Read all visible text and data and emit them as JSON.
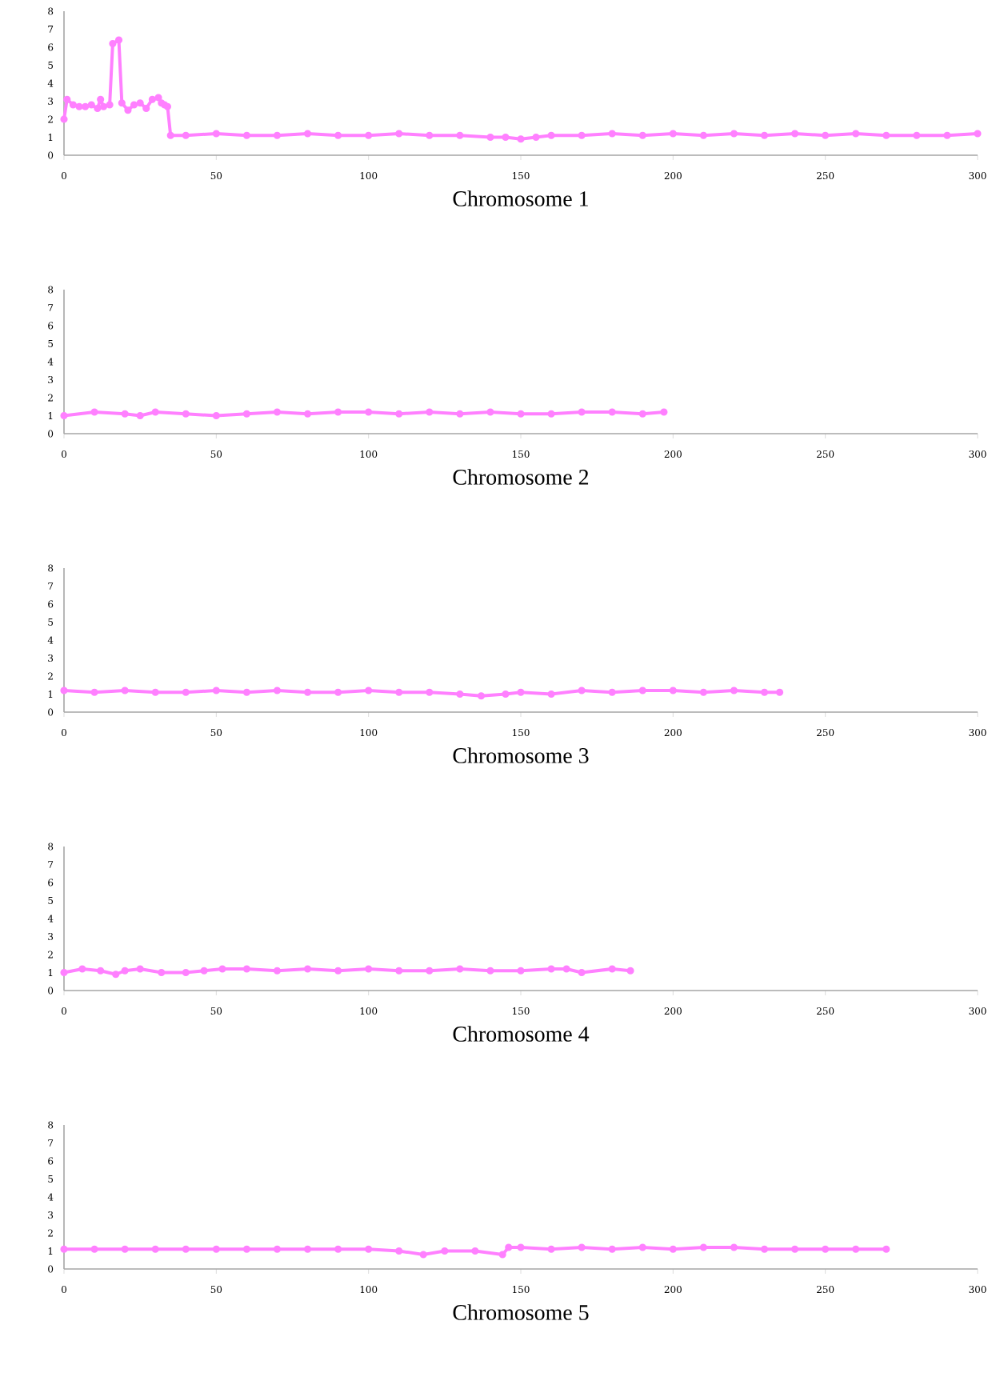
{
  "chart_data": [
    {
      "type": "line",
      "title": "Chromosome 1",
      "xlim": [
        0,
        300
      ],
      "xticks": [
        0,
        50,
        100,
        150,
        200,
        250,
        300
      ],
      "ylim": [
        0,
        8
      ],
      "yticks": [
        0,
        1,
        2,
        3,
        4,
        5,
        6,
        7,
        8
      ],
      "marker": "circle",
      "grid": false,
      "series": [
        {
          "color": "#ff80ff",
          "x": [
            0,
            1,
            3,
            5,
            7,
            9,
            11,
            12,
            13,
            15,
            16,
            18,
            19,
            21,
            23,
            25,
            27,
            29,
            31,
            32,
            33,
            34,
            35,
            40,
            50,
            60,
            70,
            80,
            90,
            100,
            110,
            120,
            130,
            140,
            145,
            150,
            155,
            160,
            170,
            180,
            190,
            200,
            210,
            220,
            230,
            240,
            250,
            260,
            270,
            280,
            290,
            300
          ],
          "values": [
            2.0,
            3.1,
            2.8,
            2.7,
            2.7,
            2.8,
            2.6,
            3.1,
            2.7,
            2.8,
            6.2,
            6.4,
            2.9,
            2.5,
            2.8,
            2.9,
            2.6,
            3.1,
            3.2,
            2.9,
            2.8,
            2.7,
            1.1,
            1.1,
            1.2,
            1.1,
            1.1,
            1.2,
            1.1,
            1.1,
            1.2,
            1.1,
            1.1,
            1.0,
            1.0,
            0.9,
            1.0,
            1.1,
            1.1,
            1.2,
            1.1,
            1.2,
            1.1,
            1.2,
            1.1,
            1.2,
            1.1,
            1.2,
            1.1,
            1.1,
            1.1,
            1.2
          ]
        }
      ]
    },
    {
      "type": "line",
      "title": "Chromosome 2",
      "xlim": [
        0,
        300
      ],
      "xticks": [
        0,
        50,
        100,
        150,
        200,
        250,
        300
      ],
      "ylim": [
        0,
        8
      ],
      "yticks": [
        0,
        1,
        2,
        3,
        4,
        5,
        6,
        7,
        8
      ],
      "marker": "circle",
      "grid": false,
      "series": [
        {
          "color": "#ff80ff",
          "x": [
            0,
            10,
            20,
            25,
            30,
            40,
            50,
            60,
            70,
            80,
            90,
            100,
            110,
            120,
            130,
            140,
            150,
            160,
            170,
            180,
            190,
            197
          ],
          "values": [
            1.0,
            1.2,
            1.1,
            1.0,
            1.2,
            1.1,
            1.0,
            1.1,
            1.2,
            1.1,
            1.2,
            1.2,
            1.1,
            1.2,
            1.1,
            1.2,
            1.1,
            1.1,
            1.2,
            1.2,
            1.1,
            1.2
          ]
        }
      ]
    },
    {
      "type": "line",
      "title": "Chromosome 3",
      "xlim": [
        0,
        300
      ],
      "xticks": [
        0,
        50,
        100,
        150,
        200,
        250,
        300
      ],
      "ylim": [
        0,
        8
      ],
      "yticks": [
        0,
        1,
        2,
        3,
        4,
        5,
        6,
        7,
        8
      ],
      "marker": "circle",
      "grid": false,
      "series": [
        {
          "color": "#ff80ff",
          "x": [
            0,
            10,
            20,
            30,
            40,
            50,
            60,
            70,
            80,
            90,
            100,
            110,
            120,
            130,
            137,
            145,
            150,
            160,
            170,
            180,
            190,
            200,
            210,
            220,
            230,
            235
          ],
          "values": [
            1.2,
            1.1,
            1.2,
            1.1,
            1.1,
            1.2,
            1.1,
            1.2,
            1.1,
            1.1,
            1.2,
            1.1,
            1.1,
            1.0,
            0.9,
            1.0,
            1.1,
            1.0,
            1.2,
            1.1,
            1.2,
            1.2,
            1.1,
            1.2,
            1.1,
            1.1
          ]
        }
      ]
    },
    {
      "type": "line",
      "title": "Chromosome 4",
      "xlim": [
        0,
        300
      ],
      "xticks": [
        0,
        50,
        100,
        150,
        200,
        250,
        300
      ],
      "ylim": [
        0,
        8
      ],
      "yticks": [
        0,
        1,
        2,
        3,
        4,
        5,
        6,
        7,
        8
      ],
      "marker": "circle",
      "grid": false,
      "series": [
        {
          "color": "#ff80ff",
          "x": [
            0,
            6,
            12,
            17,
            20,
            25,
            32,
            40,
            46,
            52,
            60,
            70,
            80,
            90,
            100,
            110,
            120,
            130,
            140,
            150,
            160,
            165,
            170,
            180,
            186
          ],
          "values": [
            1.0,
            1.2,
            1.1,
            0.9,
            1.1,
            1.2,
            1.0,
            1.0,
            1.1,
            1.2,
            1.2,
            1.1,
            1.2,
            1.1,
            1.2,
            1.1,
            1.1,
            1.2,
            1.1,
            1.1,
            1.2,
            1.2,
            1.0,
            1.2,
            1.1
          ]
        }
      ]
    },
    {
      "type": "line",
      "title": "Chromosome 5",
      "xlim": [
        0,
        300
      ],
      "xticks": [
        0,
        50,
        100,
        150,
        200,
        250,
        300
      ],
      "ylim": [
        0,
        8
      ],
      "yticks": [
        0,
        1,
        2,
        3,
        4,
        5,
        6,
        7,
        8
      ],
      "marker": "circle",
      "grid": false,
      "series": [
        {
          "color": "#ff80ff",
          "x": [
            0,
            10,
            20,
            30,
            40,
            50,
            60,
            70,
            80,
            90,
            100,
            110,
            118,
            125,
            135,
            144,
            146,
            150,
            160,
            170,
            180,
            190,
            200,
            210,
            220,
            230,
            240,
            250,
            260,
            270
          ],
          "values": [
            1.1,
            1.1,
            1.1,
            1.1,
            1.1,
            1.1,
            1.1,
            1.1,
            1.1,
            1.1,
            1.1,
            1.0,
            0.8,
            1.0,
            1.0,
            0.8,
            1.2,
            1.2,
            1.1,
            1.2,
            1.1,
            1.2,
            1.1,
            1.2,
            1.2,
            1.1,
            1.1,
            1.1,
            1.1,
            1.1
          ]
        }
      ]
    }
  ]
}
